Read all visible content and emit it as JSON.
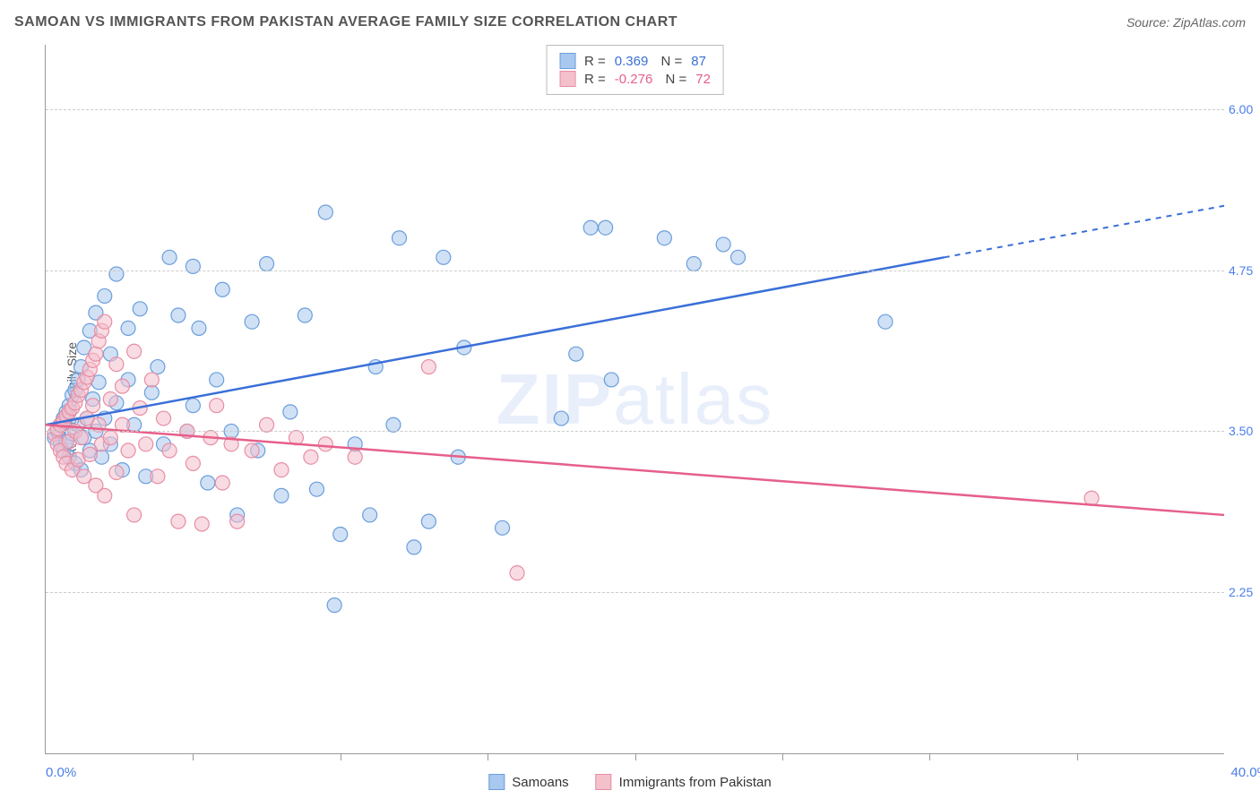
{
  "title": "SAMOAN VS IMMIGRANTS FROM PAKISTAN AVERAGE FAMILY SIZE CORRELATION CHART",
  "source": "Source: ZipAtlas.com",
  "y_axis_label": "Average Family Size",
  "watermark_bold": "ZIP",
  "watermark_rest": "atlas",
  "chart": {
    "type": "scatter-with-regression",
    "xlim": [
      0,
      40
    ],
    "ylim": [
      1.0,
      6.5
    ],
    "y_ticks": [
      2.25,
      3.5,
      4.75,
      6.0
    ],
    "y_tick_labels": [
      "2.25",
      "3.50",
      "4.75",
      "6.00"
    ],
    "y_tick_color": "#4a7ee8",
    "x_ticks": [
      5,
      10,
      15,
      20,
      25,
      30,
      35
    ],
    "x_min_label": "0.0%",
    "x_max_label": "40.0%",
    "x_label_color": "#4a7ee8",
    "grid_color": "#cccccc",
    "background_color": "#ffffff",
    "marker_radius": 8,
    "marker_opacity": 0.55,
    "series": [
      {
        "name": "Samoans",
        "color_fill": "#a9c8ef",
        "color_stroke": "#6a9edb",
        "line_color": "#3a6fd8",
        "R": "0.369",
        "N": "87",
        "regression": {
          "x1": 0,
          "y1": 3.55,
          "x2": 30.5,
          "y2": 4.85,
          "x2_dash": 40,
          "y2_dash": 5.25
        },
        "points": [
          [
            0.3,
            3.45
          ],
          [
            0.4,
            3.5
          ],
          [
            0.5,
            3.4
          ],
          [
            0.5,
            3.55
          ],
          [
            0.6,
            3.35
          ],
          [
            0.6,
            3.6
          ],
          [
            0.7,
            3.42
          ],
          [
            0.7,
            3.65
          ],
          [
            0.8,
            3.3
          ],
          [
            0.8,
            3.7
          ],
          [
            0.9,
            3.48
          ],
          [
            0.9,
            3.78
          ],
          [
            1.0,
            3.25
          ],
          [
            1.0,
            3.82
          ],
          [
            1.1,
            3.55
          ],
          [
            1.1,
            3.9
          ],
          [
            1.2,
            3.2
          ],
          [
            1.2,
            4.0
          ],
          [
            1.3,
            3.45
          ],
          [
            1.3,
            4.15
          ],
          [
            1.4,
            3.6
          ],
          [
            1.5,
            3.35
          ],
          [
            1.5,
            4.28
          ],
          [
            1.6,
            3.75
          ],
          [
            1.7,
            3.5
          ],
          [
            1.7,
            4.42
          ],
          [
            1.8,
            3.88
          ],
          [
            1.9,
            3.3
          ],
          [
            2.0,
            3.6
          ],
          [
            2.0,
            4.55
          ],
          [
            2.2,
            3.4
          ],
          [
            2.2,
            4.1
          ],
          [
            2.4,
            3.72
          ],
          [
            2.4,
            4.72
          ],
          [
            2.6,
            3.2
          ],
          [
            2.8,
            3.9
          ],
          [
            2.8,
            4.3
          ],
          [
            3.0,
            3.55
          ],
          [
            3.2,
            4.45
          ],
          [
            3.4,
            3.15
          ],
          [
            3.6,
            3.8
          ],
          [
            3.8,
            4.0
          ],
          [
            4.0,
            3.4
          ],
          [
            4.2,
            4.85
          ],
          [
            4.5,
            4.4
          ],
          [
            4.8,
            3.5
          ],
          [
            5.0,
            3.7
          ],
          [
            5.0,
            4.78
          ],
          [
            5.2,
            4.3
          ],
          [
            5.5,
            3.1
          ],
          [
            5.8,
            3.9
          ],
          [
            6.0,
            4.6
          ],
          [
            6.3,
            3.5
          ],
          [
            6.5,
            2.85
          ],
          [
            7.0,
            4.35
          ],
          [
            7.2,
            3.35
          ],
          [
            7.5,
            4.8
          ],
          [
            8.0,
            3.0
          ],
          [
            8.3,
            3.65
          ],
          [
            8.8,
            4.4
          ],
          [
            9.2,
            3.05
          ],
          [
            9.5,
            5.2
          ],
          [
            9.8,
            2.15
          ],
          [
            10.0,
            2.7
          ],
          [
            10.5,
            3.4
          ],
          [
            11.0,
            2.85
          ],
          [
            11.2,
            4.0
          ],
          [
            11.8,
            3.55
          ],
          [
            12.0,
            5.0
          ],
          [
            12.5,
            2.6
          ],
          [
            13.0,
            2.8
          ],
          [
            13.5,
            4.85
          ],
          [
            14.0,
            3.3
          ],
          [
            14.2,
            4.15
          ],
          [
            15.5,
            2.75
          ],
          [
            17.5,
            3.6
          ],
          [
            18.0,
            4.1
          ],
          [
            18.5,
            5.08
          ],
          [
            19.0,
            5.08
          ],
          [
            19.2,
            3.9
          ],
          [
            21.0,
            5.0
          ],
          [
            22.0,
            4.8
          ],
          [
            23.0,
            4.95
          ],
          [
            23.5,
            4.85
          ],
          [
            28.5,
            4.35
          ]
        ]
      },
      {
        "name": "Immigrants from Pakistan",
        "color_fill": "#f4c0cc",
        "color_stroke": "#e88da4",
        "line_color": "#e65f8a",
        "R": "-0.276",
        "N": "72",
        "regression": {
          "x1": 0,
          "y1": 3.55,
          "x2": 40,
          "y2": 2.85,
          "x2_dash": 40,
          "y2_dash": 2.85
        },
        "points": [
          [
            0.3,
            3.48
          ],
          [
            0.4,
            3.52
          ],
          [
            0.4,
            3.4
          ],
          [
            0.5,
            3.55
          ],
          [
            0.5,
            3.35
          ],
          [
            0.6,
            3.58
          ],
          [
            0.6,
            3.3
          ],
          [
            0.7,
            3.62
          ],
          [
            0.7,
            3.25
          ],
          [
            0.8,
            3.65
          ],
          [
            0.8,
            3.42
          ],
          [
            0.9,
            3.68
          ],
          [
            0.9,
            3.2
          ],
          [
            1.0,
            3.72
          ],
          [
            1.0,
            3.5
          ],
          [
            1.1,
            3.78
          ],
          [
            1.1,
            3.28
          ],
          [
            1.2,
            3.82
          ],
          [
            1.2,
            3.45
          ],
          [
            1.3,
            3.88
          ],
          [
            1.3,
            3.15
          ],
          [
            1.4,
            3.92
          ],
          [
            1.4,
            3.6
          ],
          [
            1.5,
            3.98
          ],
          [
            1.5,
            3.32
          ],
          [
            1.6,
            4.05
          ],
          [
            1.6,
            3.7
          ],
          [
            1.7,
            4.1
          ],
          [
            1.7,
            3.08
          ],
          [
            1.8,
            4.2
          ],
          [
            1.8,
            3.55
          ],
          [
            1.9,
            4.28
          ],
          [
            1.9,
            3.4
          ],
          [
            2.0,
            4.35
          ],
          [
            2.0,
            3.0
          ],
          [
            2.2,
            3.75
          ],
          [
            2.2,
            3.45
          ],
          [
            2.4,
            4.02
          ],
          [
            2.4,
            3.18
          ],
          [
            2.6,
            3.85
          ],
          [
            2.6,
            3.55
          ],
          [
            2.8,
            3.35
          ],
          [
            3.0,
            4.12
          ],
          [
            3.0,
            2.85
          ],
          [
            3.2,
            3.68
          ],
          [
            3.4,
            3.4
          ],
          [
            3.6,
            3.9
          ],
          [
            3.8,
            3.15
          ],
          [
            4.0,
            3.6
          ],
          [
            4.2,
            3.35
          ],
          [
            4.5,
            2.8
          ],
          [
            4.8,
            3.5
          ],
          [
            5.0,
            3.25
          ],
          [
            5.3,
            2.78
          ],
          [
            5.6,
            3.45
          ],
          [
            5.8,
            3.7
          ],
          [
            6.0,
            3.1
          ],
          [
            6.3,
            3.4
          ],
          [
            6.5,
            2.8
          ],
          [
            7.0,
            3.35
          ],
          [
            7.5,
            3.55
          ],
          [
            8.0,
            3.2
          ],
          [
            8.5,
            3.45
          ],
          [
            9.0,
            3.3
          ],
          [
            9.5,
            3.4
          ],
          [
            10.5,
            3.3
          ],
          [
            13.0,
            4.0
          ],
          [
            16.0,
            2.4
          ],
          [
            35.5,
            2.98
          ]
        ]
      }
    ]
  },
  "legend": {
    "series1": "Samoans",
    "series2": "Immigrants from Pakistan"
  }
}
